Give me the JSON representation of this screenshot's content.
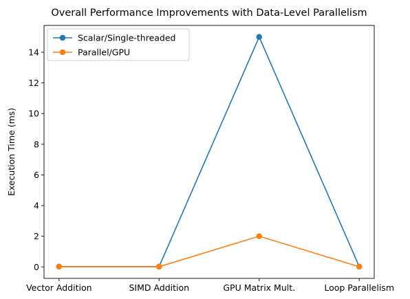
{
  "chart_data": {
    "type": "line",
    "title": "Overall Performance Improvements with Data-Level Parallelism",
    "xlabel": "",
    "ylabel": "Execution Time (ms)",
    "categories": [
      "Vector Addition",
      "SIMD Addition",
      "GPU Matrix Mult.",
      "Loop Parallelism"
    ],
    "ylim": [
      -0.75,
      15.75
    ],
    "yticks": [
      0,
      2,
      4,
      6,
      8,
      10,
      12,
      14
    ],
    "grid": false,
    "legend_position": "top-left",
    "series": [
      {
        "name": "Scalar/Single-threaded",
        "color": "#1f77b4",
        "values": [
          0.02,
          0.02,
          15.0,
          0.02
        ]
      },
      {
        "name": "Parallel/GPU",
        "color": "#ff7f0e",
        "values": [
          0.01,
          0.01,
          2.0,
          0.01
        ]
      }
    ]
  }
}
